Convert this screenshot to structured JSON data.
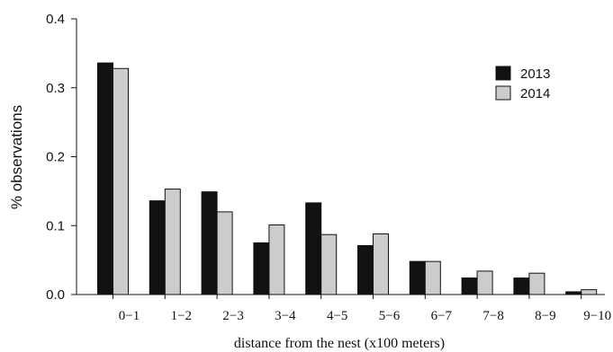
{
  "chart_data": {
    "type": "bar",
    "categories": [
      "0−1",
      "1−2",
      "2−3",
      "3−4",
      "4−5",
      "5−6",
      "6−7",
      "7−8",
      "8−9",
      "9−10"
    ],
    "series": [
      {
        "name": "2013",
        "values": [
          0.336,
          0.136,
          0.149,
          0.075,
          0.133,
          0.071,
          0.048,
          0.024,
          0.024,
          0.004
        ],
        "color": "#111111"
      },
      {
        "name": "2014",
        "values": [
          0.328,
          0.153,
          0.12,
          0.101,
          0.087,
          0.088,
          0.048,
          0.034,
          0.031,
          0.007
        ],
        "color": "#cccccc"
      }
    ],
    "xlabel": "distance from the nest (x100 meters)",
    "ylabel": "% observations",
    "ylim": [
      0,
      0.4
    ],
    "yticks": [
      "0.0",
      "0.1",
      "0.2",
      "0.3",
      "0.4"
    ],
    "legend_position": "top-right",
    "grid": false
  }
}
